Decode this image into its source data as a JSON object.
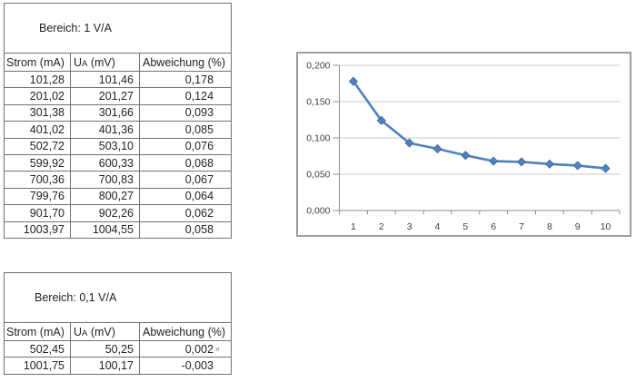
{
  "table1": {
    "title": "Bereich: 1 V/A",
    "headers": {
      "strom": "Strom (mA)",
      "ua_base": "U",
      "ua_sub": "A",
      "ua_rest": " (mV)",
      "abweichung": "Abweichung (%)"
    },
    "rows": [
      [
        "101,28",
        "101,46",
        "0,178"
      ],
      [
        "201,02",
        "201,27",
        "0,124"
      ],
      [
        "301,38",
        "301,66",
        "0,093"
      ],
      [
        "401,02",
        "401,36",
        "0,085"
      ],
      [
        "502,72",
        "503,10",
        "0,076"
      ],
      [
        "599,92",
        "600,33",
        "0,068"
      ],
      [
        "700,36",
        "700,83",
        "0,067"
      ],
      [
        "799,76",
        "800,27",
        "0,064"
      ],
      [
        "901,70",
        "902,26",
        "0,062"
      ],
      [
        "1003,97",
        "1004,55",
        "0,058"
      ]
    ]
  },
  "table2": {
    "title": "Bereich: 0,1 V/A",
    "headers": {
      "strom": "Strom (mA)",
      "ua_base": "U",
      "ua_sub": "A",
      "ua_rest": " (mV)",
      "abweichung": "Abweichung (%)"
    },
    "rows": [
      [
        "502,45",
        "50,25",
        "0,002"
      ],
      [
        "1001,75",
        "100,17",
        "-0,003"
      ]
    ],
    "comment_mark": "″"
  },
  "chart_data": {
    "type": "line",
    "x": [
      1,
      2,
      3,
      4,
      5,
      6,
      7,
      8,
      9,
      10
    ],
    "series": [
      {
        "name": "Abweichung (%)",
        "values": [
          0.178,
          0.124,
          0.093,
          0.085,
          0.076,
          0.068,
          0.067,
          0.064,
          0.062,
          0.058
        ]
      }
    ],
    "title": "",
    "xlabel": "",
    "ylabel": "",
    "ylim": [
      0,
      0.2
    ],
    "ytick_step": 0.05,
    "ytick_labels": [
      "0,000",
      "0,050",
      "0,100",
      "0,150",
      "0,200"
    ],
    "xtick_labels": [
      "1",
      "2",
      "3",
      "4",
      "5",
      "6",
      "7",
      "8",
      "9",
      "10"
    ],
    "grid": true,
    "legend": "none",
    "marker": "diamond",
    "line_color": "#4f81bd",
    "gridline_color": "#c9c9c9",
    "axis_color": "#8f8f8f",
    "label_color": "#3f3f3f"
  }
}
